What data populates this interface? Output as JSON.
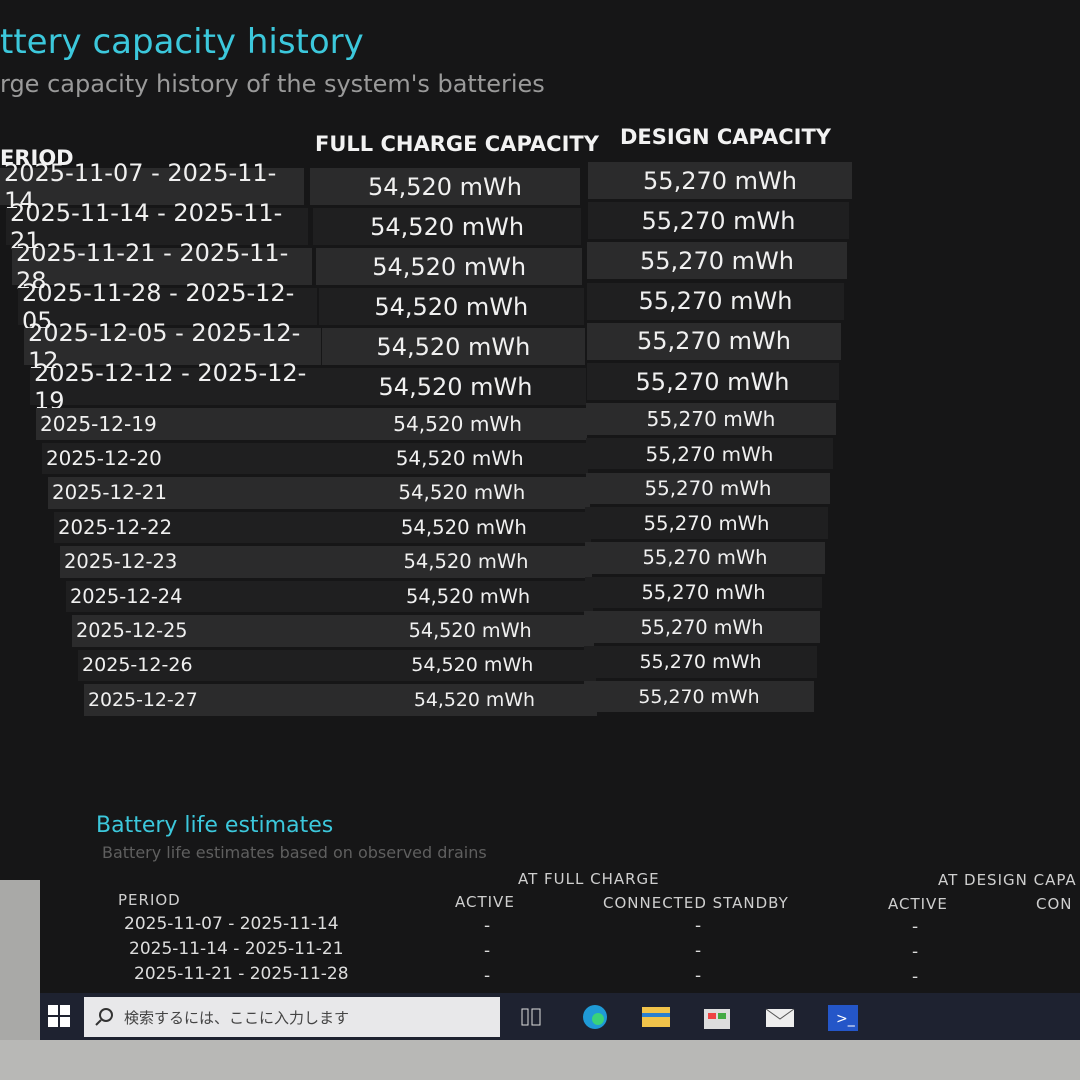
{
  "capacity_history": {
    "title": "ttery capacity history",
    "subtitle": "rge capacity history of the system's batteries",
    "columns": [
      "ERIOD",
      "FULL CHARGE CAPACITY",
      "DESIGN CAPACITY"
    ],
    "rows": [
      [
        "2025-11-07 - 2025-11-14",
        "54,520 mWh",
        "55,270 mWh"
      ],
      [
        "2025-11-14 - 2025-11-21",
        "54,520 mWh",
        "55,270 mWh"
      ],
      [
        "2025-11-21 - 2025-11-28",
        "54,520 mWh",
        "55,270 mWh"
      ],
      [
        "2025-11-28 - 2025-12-05",
        "54,520 mWh",
        "55,270 mWh"
      ],
      [
        "2025-12-05 - 2025-12-12",
        "54,520 mWh",
        "55,270 mWh"
      ],
      [
        "2025-12-12 - 2025-12-19",
        "54,520 mWh",
        "55,270 mWh"
      ],
      [
        "2025-12-19",
        "54,520 mWh",
        "55,270 mWh"
      ],
      [
        "2025-12-20",
        "54,520 mWh",
        "55,270 mWh"
      ],
      [
        "2025-12-21",
        "54,520 mWh",
        "55,270 mWh"
      ],
      [
        "2025-12-22",
        "54,520 mWh",
        "55,270 mWh"
      ],
      [
        "2025-12-23",
        "54,520 mWh",
        "55,270 mWh"
      ],
      [
        "2025-12-24",
        "54,520 mWh",
        "55,270 mWh"
      ],
      [
        "2025-12-25",
        "54,520 mWh",
        "55,270 mWh"
      ],
      [
        "2025-12-26",
        "54,520 mWh",
        "55,270 mWh"
      ],
      [
        "2025-12-27",
        "54,520 mWh",
        "55,270 mWh"
      ]
    ]
  },
  "life_estimates": {
    "title": "Battery life estimates",
    "subtitle": "Battery life estimates based on observed drains",
    "groups": [
      "AT FULL CHARGE",
      "AT DESIGN CAPA"
    ],
    "columns": [
      "PERIOD",
      "ACTIVE",
      "CONNECTED STANDBY",
      "ACTIVE",
      "CON"
    ],
    "rows": [
      [
        "2025-11-07 - 2025-11-14",
        "-",
        "-",
        "-"
      ],
      [
        "2025-11-14 - 2025-11-21",
        "-",
        "-",
        "-"
      ],
      [
        "2025-11-21 - 2025-11-28",
        "-",
        "-",
        "-"
      ]
    ]
  },
  "taskbar": {
    "search_placeholder": "検索するには、ここに入力します"
  }
}
